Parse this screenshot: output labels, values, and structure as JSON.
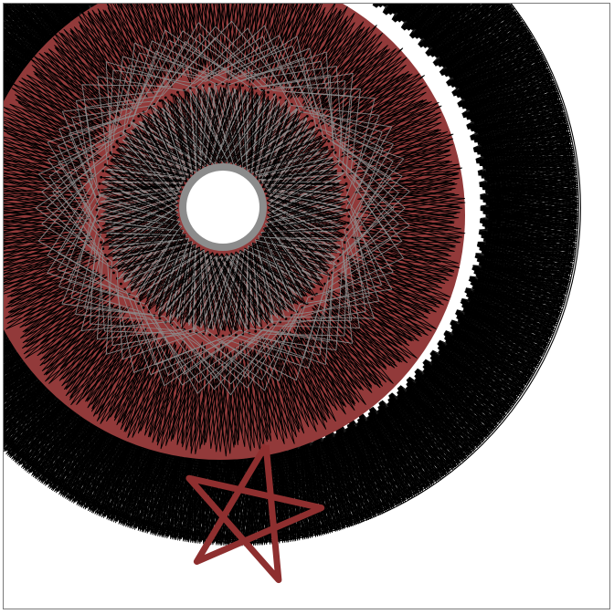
{
  "artwork": {
    "kind": "string-art spirograph",
    "colors": {
      "background": "#ffffff",
      "border": "#7a7a7a",
      "disc": "#923a3a",
      "ink": "#000000",
      "grey": "#8c8c8c",
      "star": "#8e2f2f"
    },
    "layers": [
      {
        "name": "outer-ring-web",
        "color": "#000000"
      },
      {
        "name": "red-disc",
        "color": "#923a3a"
      },
      {
        "name": "middle-chevron-web",
        "color": "#000000"
      },
      {
        "name": "grey-light-web",
        "color": "#8c8c8c"
      },
      {
        "name": "inner-dark-web",
        "color": "#000000"
      },
      {
        "name": "grey-ring",
        "color": "#8c8c8c"
      },
      {
        "name": "pentagram",
        "color": "#8e2f2f"
      }
    ]
  }
}
